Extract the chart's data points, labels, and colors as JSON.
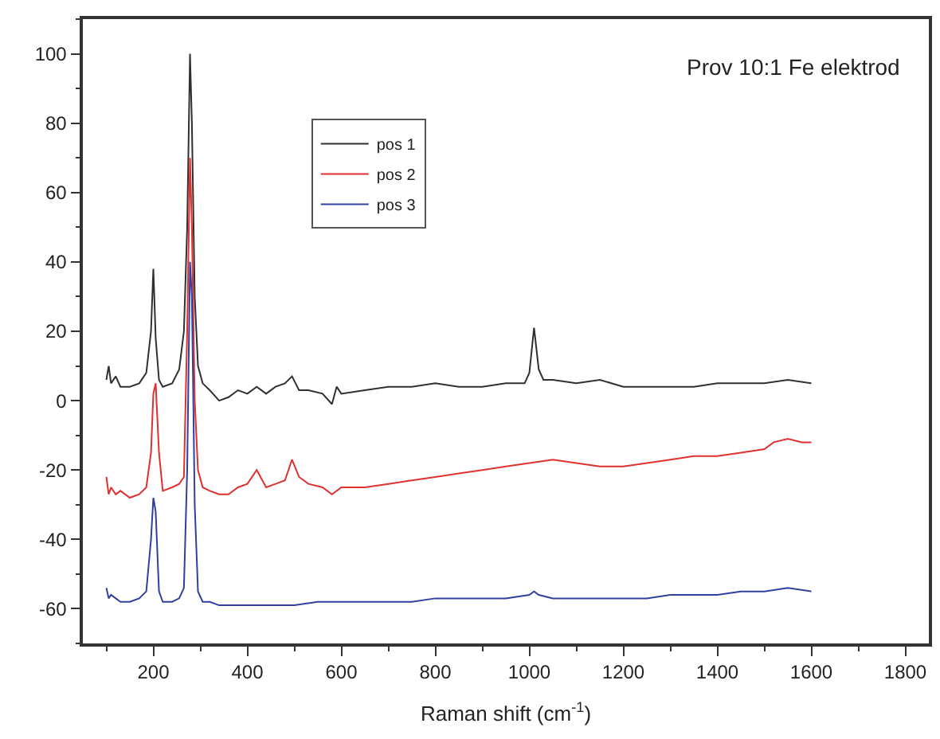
{
  "chart_data": {
    "type": "line",
    "xlabel": "Raman shift (cm$^{-1}$)",
    "annotations": [
      "Prov 10:1 Fe elektrod"
    ],
    "xlim": [
      50,
      1850
    ],
    "xticks": [
      200,
      400,
      600,
      800,
      1000,
      1200,
      1400,
      1600,
      1800
    ],
    "ylim": [
      -70,
      110
    ],
    "yticks": [
      -60,
      -40,
      -20,
      0,
      20,
      40,
      60,
      80,
      100
    ],
    "legend": "top left",
    "marker": "none",
    "line_style": "solid",
    "series": [
      {
        "name": "pos 1",
        "color": "#303030",
        "x": [
          100,
          105,
          110,
          120,
          130,
          150,
          170,
          185,
          195,
          200,
          205,
          212,
          220,
          240,
          255,
          265,
          272,
          278,
          282,
          288,
          295,
          305,
          320,
          340,
          360,
          380,
          400,
          420,
          440,
          460,
          480,
          495,
          510,
          530,
          560,
          580,
          590,
          600,
          650,
          700,
          750,
          800,
          850,
          900,
          950,
          990,
          1000,
          1010,
          1020,
          1030,
          1050,
          1100,
          1150,
          1200,
          1250,
          1300,
          1350,
          1400,
          1450,
          1500,
          1550,
          1600
        ],
        "values": [
          6,
          10,
          5,
          7,
          4,
          4,
          5,
          8,
          20,
          38,
          18,
          6,
          4,
          5,
          9,
          20,
          50,
          100,
          80,
          30,
          10,
          5,
          3,
          0,
          1,
          3,
          2,
          4,
          2,
          4,
          5,
          7,
          3,
          3,
          2,
          -1,
          4,
          2,
          3,
          4,
          4,
          5,
          4,
          4,
          5,
          5,
          8,
          21,
          9,
          6,
          6,
          5,
          6,
          4,
          4,
          4,
          4,
          5,
          5,
          5,
          6,
          5
        ]
      },
      {
        "name": "pos 2",
        "color": "#e03030",
        "x": [
          100,
          105,
          110,
          120,
          130,
          150,
          170,
          185,
          195,
          200,
          205,
          212,
          220,
          240,
          255,
          265,
          272,
          278,
          282,
          288,
          295,
          305,
          320,
          340,
          360,
          380,
          400,
          420,
          440,
          460,
          480,
          495,
          510,
          530,
          560,
          580,
          600,
          650,
          700,
          750,
          800,
          850,
          900,
          950,
          1000,
          1050,
          1100,
          1150,
          1200,
          1250,
          1300,
          1350,
          1400,
          1450,
          1500,
          1520,
          1550,
          1580,
          1600
        ],
        "values": [
          -22,
          -27,
          -25,
          -27,
          -26,
          -28,
          -27,
          -25,
          -15,
          2,
          5,
          -15,
          -26,
          -25,
          -24,
          -22,
          20,
          70,
          50,
          0,
          -20,
          -25,
          -26,
          -27,
          -27,
          -25,
          -24,
          -20,
          -25,
          -24,
          -23,
          -17,
          -22,
          -24,
          -25,
          -27,
          -25,
          -25,
          -24,
          -23,
          -22,
          -21,
          -20,
          -19,
          -18,
          -17,
          -18,
          -19,
          -19,
          -18,
          -17,
          -16,
          -16,
          -15,
          -14,
          -12,
          -11,
          -12,
          -12
        ]
      },
      {
        "name": "pos 3",
        "color": "#3040a0",
        "x": [
          100,
          105,
          110,
          120,
          130,
          150,
          170,
          185,
          195,
          200,
          205,
          212,
          220,
          240,
          255,
          265,
          272,
          278,
          282,
          288,
          295,
          305,
          320,
          340,
          360,
          380,
          400,
          450,
          500,
          550,
          600,
          650,
          700,
          750,
          800,
          850,
          900,
          950,
          1000,
          1010,
          1020,
          1050,
          1100,
          1150,
          1200,
          1250,
          1300,
          1350,
          1400,
          1450,
          1500,
          1550,
          1600
        ],
        "values": [
          -54,
          -57,
          -56,
          -57,
          -58,
          -58,
          -57,
          -55,
          -40,
          -28,
          -32,
          -55,
          -58,
          -58,
          -57,
          -54,
          -20,
          40,
          30,
          -30,
          -55,
          -58,
          -58,
          -59,
          -59,
          -59,
          -59,
          -59,
          -59,
          -58,
          -58,
          -58,
          -58,
          -58,
          -57,
          -57,
          -57,
          -57,
          -56,
          -55,
          -56,
          -57,
          -57,
          -57,
          -57,
          -57,
          -56,
          -56,
          -56,
          -55,
          -55,
          -54,
          -55
        ]
      }
    ]
  }
}
